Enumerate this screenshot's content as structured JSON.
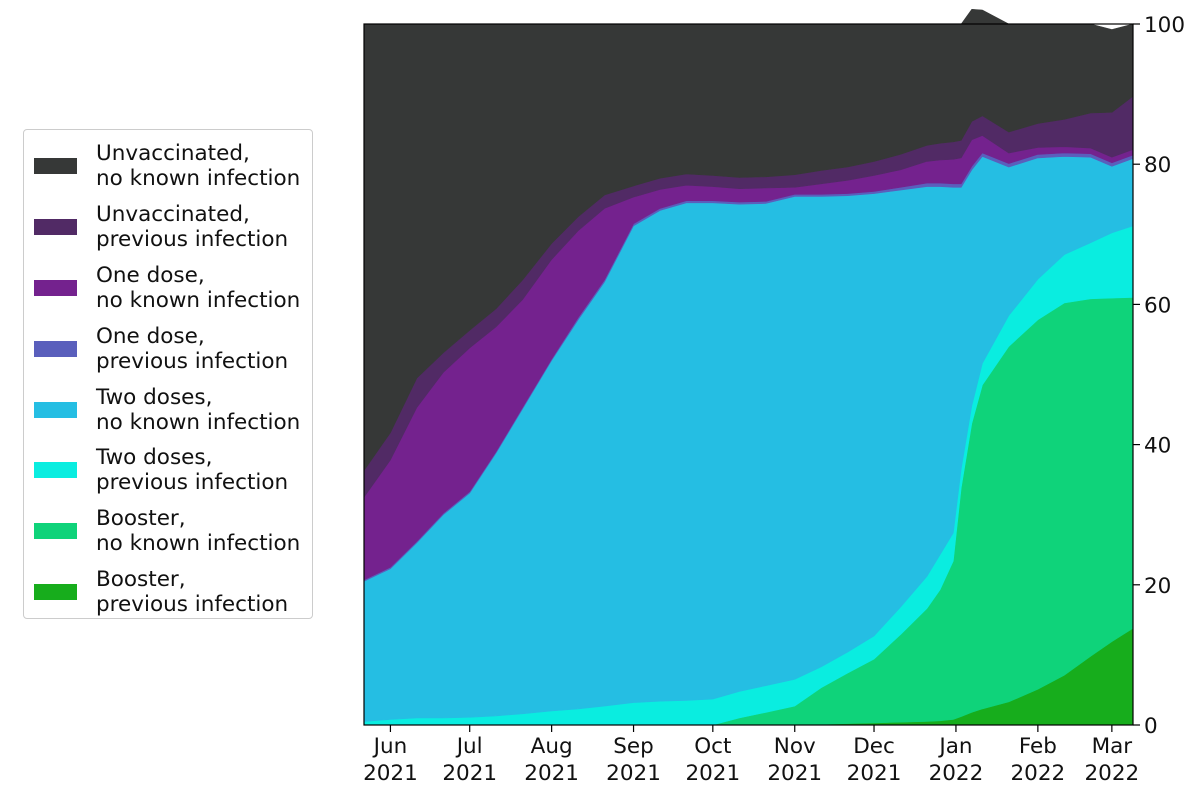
{
  "chart_data": {
    "type": "area",
    "stacked": true,
    "y_axis_side": "right",
    "ylim": [
      0,
      100
    ],
    "yticks": [
      0,
      20,
      40,
      60,
      80,
      100
    ],
    "x_start": "2021-05-22",
    "x_end": "2022-03-09",
    "xticks": [
      {
        "date": "2021-06-01",
        "line1": "Jun",
        "line2": "2021"
      },
      {
        "date": "2021-07-01",
        "line1": "Jul",
        "line2": "2021"
      },
      {
        "date": "2021-08-01",
        "line1": "Aug",
        "line2": "2021"
      },
      {
        "date": "2021-09-01",
        "line1": "Sep",
        "line2": "2021"
      },
      {
        "date": "2021-10-01",
        "line1": "Oct",
        "line2": "2021"
      },
      {
        "date": "2021-11-01",
        "line1": "Nov",
        "line2": "2021"
      },
      {
        "date": "2021-12-01",
        "line1": "Dec",
        "line2": "2021"
      },
      {
        "date": "2022-01-01",
        "line1": "Jan",
        "line2": "2022"
      },
      {
        "date": "2022-02-01",
        "line1": "Feb",
        "line2": "2022"
      },
      {
        "date": "2022-03-01",
        "line1": "Mar",
        "line2": "2022"
      }
    ],
    "x": [
      "2021-05-22",
      "2021-06-01",
      "2021-06-11",
      "2021-06-21",
      "2021-07-01",
      "2021-07-11",
      "2021-07-21",
      "2021-08-01",
      "2021-08-11",
      "2021-08-21",
      "2021-09-01",
      "2021-09-11",
      "2021-09-21",
      "2021-10-01",
      "2021-10-11",
      "2021-10-21",
      "2021-11-01",
      "2021-11-11",
      "2021-11-21",
      "2021-12-01",
      "2021-12-11",
      "2021-12-21",
      "2021-12-26",
      "2021-12-31",
      "2022-01-03",
      "2022-01-07",
      "2022-01-11",
      "2022-01-21",
      "2022-02-01",
      "2022-02-11",
      "2022-02-21",
      "2022-03-01",
      "2022-03-09"
    ],
    "series": [
      {
        "name": "Booster,\nprevious infection",
        "color": "#17ad1c",
        "values": [
          0,
          0,
          0,
          0,
          0,
          0,
          0,
          0,
          0,
          0,
          0,
          0,
          0,
          0,
          0,
          0,
          0,
          0.1,
          0.2,
          0.3,
          0.4,
          0.5,
          0.6,
          0.8,
          1.2,
          1.8,
          2.3,
          3.3,
          5.1,
          7.1,
          9.8,
          11.9,
          13.8
        ]
      },
      {
        "name": "Booster,\nno known infection",
        "color": "#0fd37a",
        "values": [
          0,
          0,
          0,
          0,
          0,
          0,
          0,
          0,
          0,
          0,
          0,
          0,
          0,
          0,
          1.0,
          1.8,
          2.7,
          5.2,
          7.2,
          9.1,
          12.5,
          16.1,
          18.7,
          22.6,
          32.6,
          41.2,
          46.2,
          50.7,
          52.7,
          53.1,
          51.0,
          49.0,
          47.2
        ]
      },
      {
        "name": "Two doses,\nprevious infection",
        "color": "#0aede0",
        "values": [
          0.5,
          0.8,
          1.0,
          1.0,
          1.1,
          1.3,
          1.6,
          2.0,
          2.3,
          2.7,
          3.2,
          3.4,
          3.5,
          3.7,
          3.8,
          3.8,
          3.8,
          3.0,
          3.0,
          3.3,
          3.9,
          4.6,
          5.0,
          4.0,
          2.7,
          2.5,
          3.1,
          4.4,
          5.8,
          6.9,
          8.0,
          9.3,
          10.2
        ]
      },
      {
        "name": "Two doses,\nno known infection",
        "color": "#25bee3",
        "values": [
          20.0,
          21.5,
          25.0,
          29.0,
          32.0,
          37.5,
          43.5,
          50.0,
          55.5,
          60.5,
          68.0,
          70.0,
          71.0,
          70.8,
          69.5,
          68.8,
          68.9,
          67.1,
          65.1,
          63.1,
          59.5,
          55.6,
          52.5,
          49.3,
          40.2,
          33.7,
          29.5,
          21.2,
          17.3,
          14.0,
          12.2,
          9.5,
          9.6
        ]
      },
      {
        "name": "One dose,\nprevious infection",
        "color": "#5a5fbc",
        "values": [
          0.2,
          0.2,
          0.2,
          0.2,
          0.2,
          0.2,
          0.2,
          0.2,
          0.3,
          0.3,
          0.3,
          0.3,
          0.3,
          0.3,
          0.3,
          0.3,
          0.3,
          0.3,
          0.3,
          0.3,
          0.4,
          0.5,
          0.5,
          0.5,
          0.5,
          0.5,
          0.5,
          0.5,
          0.5,
          0.5,
          0.5,
          0.5,
          0.5
        ]
      },
      {
        "name": "One dose,\nno known infection",
        "color": "#74228e",
        "values": [
          11.8,
          15.3,
          19.1,
          20.1,
          20.5,
          17.8,
          15.4,
          14.2,
          12.4,
          10.2,
          3.8,
          2.7,
          2.2,
          2.0,
          1.9,
          1.9,
          1.0,
          1.5,
          1.9,
          2.3,
          2.5,
          3.1,
          3.3,
          3.5,
          3.7,
          3.8,
          2.5,
          1.5,
          1.0,
          0.9,
          0.8,
          0.8,
          0.8
        ]
      },
      {
        "name": "Unvaccinated,\nprevious infection",
        "color": "#512a65",
        "values": [
          3.8,
          3.9,
          4.2,
          2.8,
          2.5,
          2.6,
          2.8,
          2.3,
          2.0,
          1.9,
          1.6,
          1.6,
          1.6,
          1.6,
          1.6,
          1.6,
          1.8,
          1.9,
          1.9,
          2.0,
          2.2,
          2.3,
          2.4,
          2.5,
          2.5,
          2.6,
          2.8,
          3.0,
          3.4,
          3.9,
          5.0,
          6.4,
          7.6
        ]
      },
      {
        "name": "Unvaccinated,\nno known infection",
        "color": "#363837",
        "values": [
          63.7,
          58.3,
          50.5,
          46.9,
          43.7,
          40.6,
          36.5,
          31.3,
          27.5,
          24.4,
          23.1,
          22.0,
          21.4,
          21.6,
          21.9,
          21.8,
          21.5,
          20.9,
          20.4,
          19.6,
          18.6,
          17.3,
          17.0,
          16.8,
          16.6,
          16.0,
          15.1,
          15.4,
          14.2,
          13.6,
          12.7,
          11.8,
          10.3
        ]
      }
    ]
  }
}
